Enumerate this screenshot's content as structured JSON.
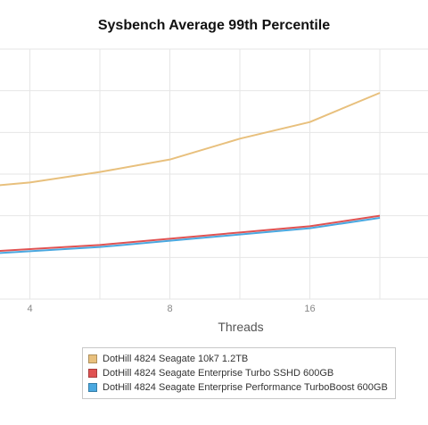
{
  "chart_data": {
    "type": "line",
    "title": "Sysbench Average 99th Percentile",
    "xlabel": "Threads",
    "ylabel": "",
    "categories": [
      "",
      "4",
      "",
      "8",
      "",
      "16",
      ""
    ],
    "grid": true,
    "legend_position": "bottom",
    "series": [
      {
        "name": "DotHill 4824 Seagate 10k7 1.2TB",
        "color": "#e8c07d",
        "values": [
          5.3,
          5.6,
          6.1,
          6.7,
          7.7,
          8.5,
          9.9
        ]
      },
      {
        "name": "DotHill 4824 Seagate Enterprise Turbo SSHD 600GB",
        "color": "#e05252",
        "values": [
          2.2,
          2.4,
          2.6,
          2.9,
          3.2,
          3.5,
          4.0
        ]
      },
      {
        "name": "DotHill 4824 Seagate Enterprise Performance TurboBoost 600GB",
        "color": "#4aa8e0",
        "values": [
          2.1,
          2.3,
          2.5,
          2.8,
          3.1,
          3.4,
          3.9
        ]
      }
    ],
    "ylim": [
      0,
      12
    ]
  }
}
